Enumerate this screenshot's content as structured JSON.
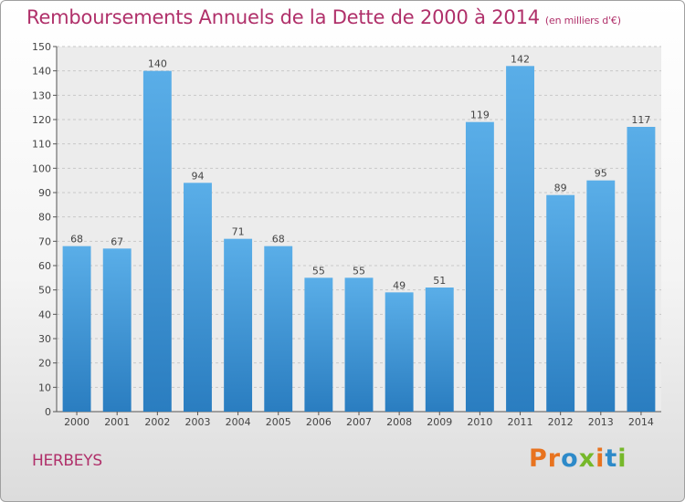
{
  "page": {
    "title": "Remboursements Annuels de la Dette de 2000 à 2014",
    "title_unit": "(en milliers d'€)",
    "commune": "HERBEYS",
    "logo_text": "Proxiti",
    "logo_colors": [
      "#e8731f",
      "#e8731f",
      "#2d8ac9",
      "#76b82a",
      "#e8731f",
      "#2d8ac9",
      "#76b82a"
    ],
    "accent_color": "#b0306a",
    "bar_color": "#3d94d8"
  },
  "chart_data": {
    "type": "bar",
    "categories": [
      "2000",
      "2001",
      "2002",
      "2003",
      "2004",
      "2005",
      "2006",
      "2007",
      "2008",
      "2009",
      "2010",
      "2011",
      "2012",
      "2013",
      "2014"
    ],
    "values": [
      68,
      67,
      140,
      94,
      71,
      68,
      55,
      55,
      49,
      51,
      119,
      142,
      89,
      95,
      117
    ],
    "data_labels": [
      "68",
      "67",
      "140",
      "94",
      "71",
      "68",
      "55",
      "55",
      "49",
      "51",
      "119",
      "142",
      "89",
      "95",
      "117"
    ],
    "yticks": [
      0,
      10,
      20,
      30,
      40,
      50,
      60,
      70,
      80,
      90,
      100,
      110,
      120,
      130,
      140,
      150
    ],
    "ylim": [
      0,
      150
    ],
    "grid": true,
    "title": "Remboursements Annuels de la Dette de 2000 à 2014",
    "xlabel": "",
    "ylabel": ""
  }
}
